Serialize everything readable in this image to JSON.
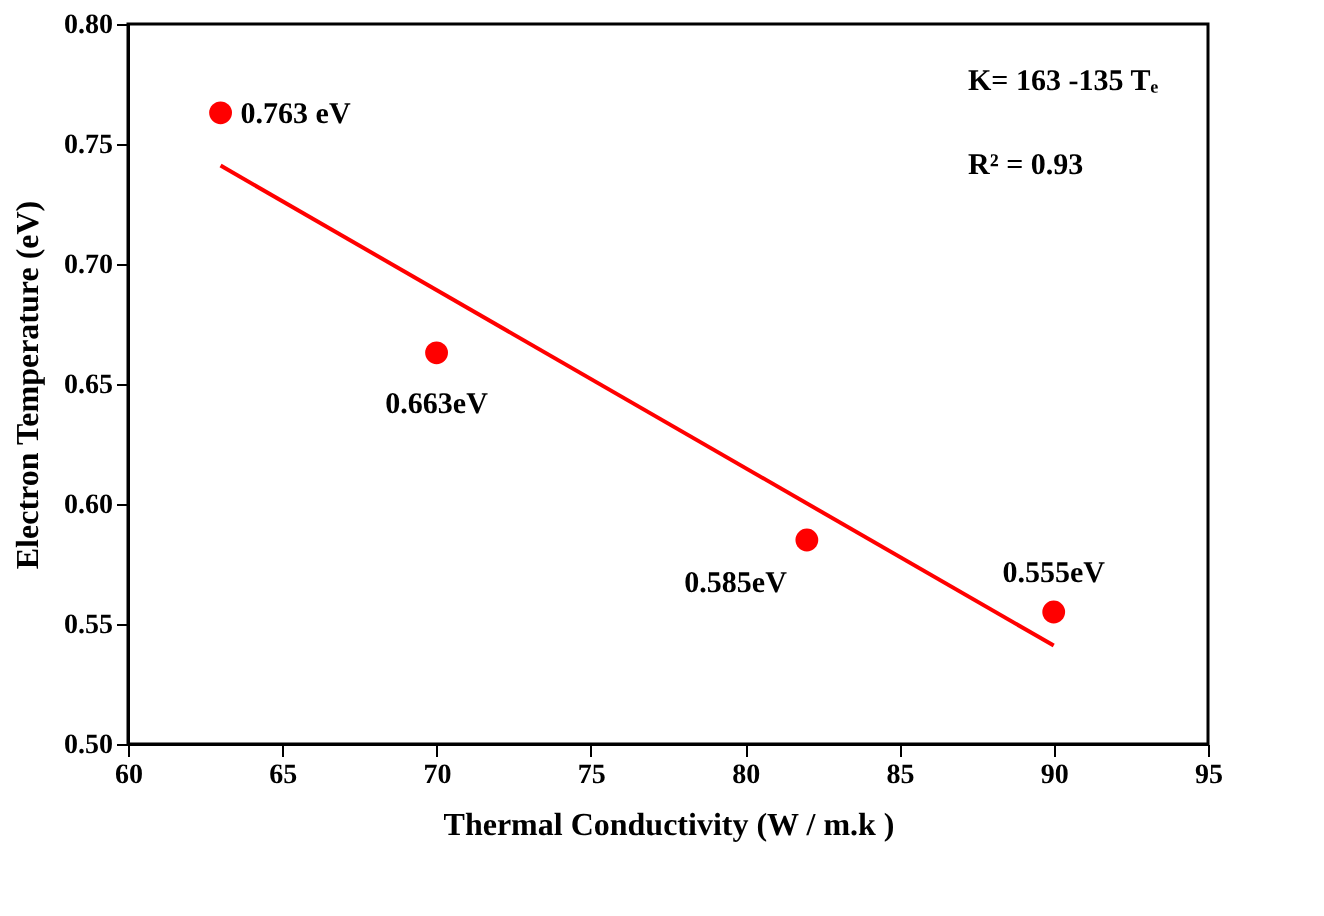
{
  "chart_data": {
    "type": "scatter",
    "xlabel": "Thermal Conductivity (W / m.k )",
    "ylabel": "Electron Temperature (eV)",
    "xlim": [
      60,
      95
    ],
    "xticks": [
      60,
      65,
      70,
      75,
      80,
      85,
      90,
      95
    ],
    "ylim": [
      0.5,
      0.8
    ],
    "yticks": [
      {
        "value": 0.5,
        "label": "0.50"
      },
      0.55,
      {
        "value": 0.6,
        "label": "0.60"
      },
      0.65,
      {
        "value": 0.7,
        "label": "0.70"
      },
      0.75,
      {
        "value": 0.8,
        "label": "0.80"
      }
    ],
    "grid": false,
    "marker": "circle",
    "series": [
      {
        "color": "#ff0000",
        "x": [
          63,
          70,
          82,
          90
        ],
        "values": [
          0.763,
          0.663,
          0.585,
          0.555
        ],
        "value_labels": [
          "0.763 eV",
          "0.663eV",
          "0.585eV",
          "0.555eV"
        ]
      },
      {
        "type": "line",
        "marker": "none",
        "color": "#ff0000",
        "x": [
          63,
          90
        ],
        "values": [
          0.741,
          0.541
        ]
      }
    ],
    "annotations": [
      "K= 163 -135 Tₑ",
      "R² = 0.93"
    ]
  }
}
